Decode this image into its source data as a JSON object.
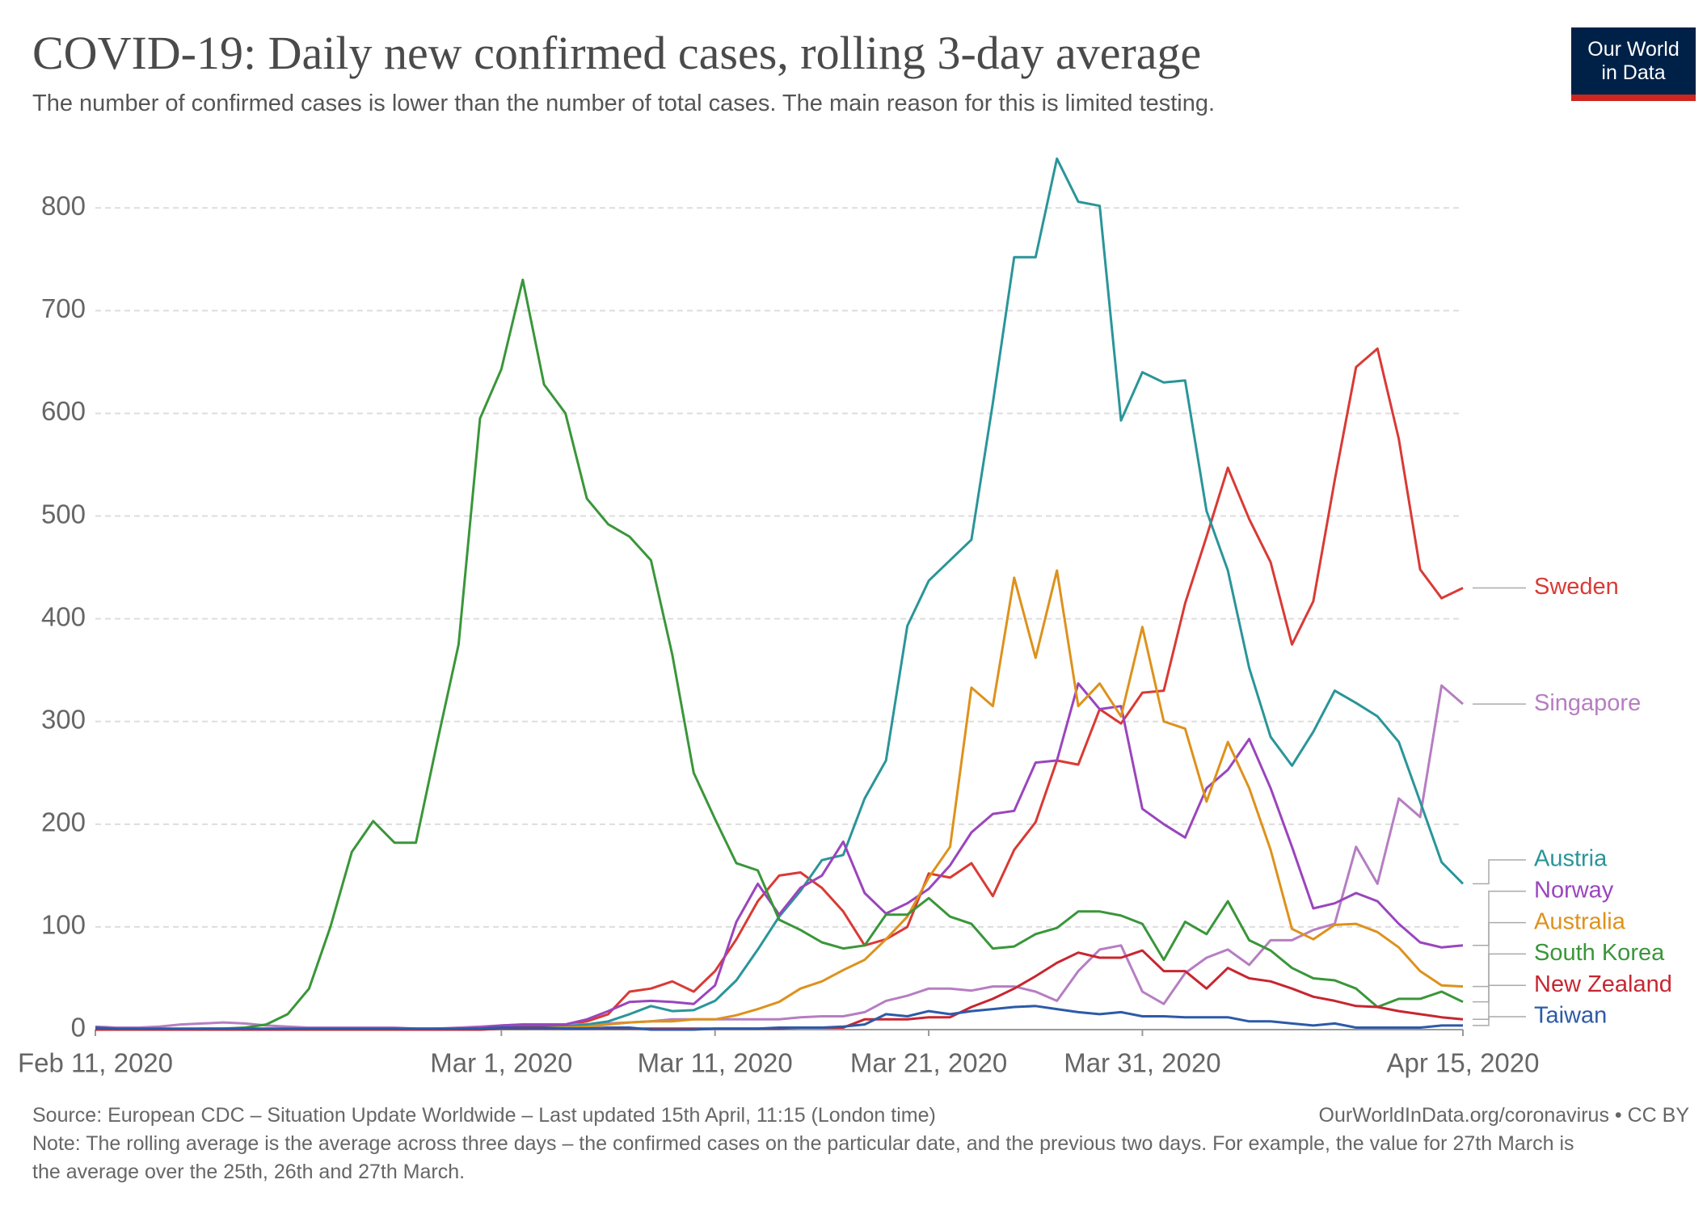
{
  "chart_data": {
    "type": "line",
    "title": "COVID-19: Daily new confirmed cases, rolling 3-day average",
    "subtitle": "The number of confirmed cases is lower than the number of total cases. The main reason for this is limited testing.",
    "logo": [
      "Our World",
      "in Data"
    ],
    "source": "Source: European CDC – Situation Update Worldwide – Last updated 15th April, 11:15 (London time)",
    "source_link": "OurWorldInData.org/coronavirus • CC BY",
    "note": "Note: The rolling average is the average across three days – the confirmed cases on the particular date, and the previous two days. For example, the value for 27th March is the average over the 25th, 26th and 27th March.",
    "x": [
      "2020-02-11",
      "2020-02-12",
      "2020-02-13",
      "2020-02-14",
      "2020-02-15",
      "2020-02-16",
      "2020-02-17",
      "2020-02-18",
      "2020-02-19",
      "2020-02-20",
      "2020-02-21",
      "2020-02-22",
      "2020-02-23",
      "2020-02-24",
      "2020-02-25",
      "2020-02-26",
      "2020-02-27",
      "2020-02-28",
      "2020-02-29",
      "2020-03-01",
      "2020-03-02",
      "2020-03-03",
      "2020-03-04",
      "2020-03-05",
      "2020-03-06",
      "2020-03-07",
      "2020-03-08",
      "2020-03-09",
      "2020-03-10",
      "2020-03-11",
      "2020-03-12",
      "2020-03-13",
      "2020-03-14",
      "2020-03-15",
      "2020-03-16",
      "2020-03-17",
      "2020-03-18",
      "2020-03-19",
      "2020-03-20",
      "2020-03-21",
      "2020-03-22",
      "2020-03-23",
      "2020-03-24",
      "2020-03-25",
      "2020-03-26",
      "2020-03-27",
      "2020-03-28",
      "2020-03-29",
      "2020-03-30",
      "2020-03-31",
      "2020-04-01",
      "2020-04-02",
      "2020-04-03",
      "2020-04-04",
      "2020-04-05",
      "2020-04-06",
      "2020-04-07",
      "2020-04-08",
      "2020-04-09",
      "2020-04-10",
      "2020-04-11",
      "2020-04-12",
      "2020-04-13",
      "2020-04-14",
      "2020-04-15"
    ],
    "xlim": [
      "2020-02-11",
      "2020-04-15"
    ],
    "xticks": [
      {
        "value": "2020-02-11",
        "label": "Feb 11, 2020"
      },
      {
        "value": "2020-03-01",
        "label": "Mar 1, 2020"
      },
      {
        "value": "2020-03-11",
        "label": "Mar 11, 2020"
      },
      {
        "value": "2020-03-21",
        "label": "Mar 21, 2020"
      },
      {
        "value": "2020-03-31",
        "label": "Mar 31, 2020"
      },
      {
        "value": "2020-04-15",
        "label": "Apr 15, 2020"
      }
    ],
    "ylim": [
      0,
      860
    ],
    "yticks": [
      0,
      100,
      200,
      300,
      400,
      500,
      600,
      700,
      800
    ],
    "grid": true,
    "series": [
      {
        "name": "Sweden",
        "color": "#d93a35",
        "values": [
          0,
          0,
          0,
          0,
          0,
          0,
          0,
          0,
          0,
          0,
          0,
          0,
          0,
          0,
          0,
          0,
          1,
          1,
          2,
          3,
          3,
          3,
          5,
          8,
          15,
          37,
          40,
          47,
          37,
          57,
          88,
          125,
          150,
          153,
          138,
          115,
          82,
          88,
          100,
          152,
          148,
          162,
          130,
          175,
          202,
          262,
          258,
          312,
          298,
          328,
          330,
          415,
          480,
          547,
          497,
          455,
          375,
          417,
          535,
          645,
          663,
          575,
          448,
          420,
          430
        ]
      },
      {
        "name": "Singapore",
        "color": "#b67ec2",
        "values": [
          3,
          2,
          2,
          3,
          5,
          6,
          7,
          6,
          4,
          3,
          2,
          2,
          2,
          2,
          2,
          1,
          1,
          2,
          3,
          4,
          5,
          5,
          5,
          5,
          6,
          7,
          8,
          10,
          10,
          10,
          10,
          10,
          10,
          12,
          13,
          13,
          17,
          28,
          33,
          40,
          40,
          38,
          42,
          42,
          37,
          28,
          57,
          78,
          82,
          37,
          25,
          55,
          70,
          78,
          63,
          87,
          87,
          97,
          103,
          178,
          142,
          225,
          207,
          335,
          317
        ]
      },
      {
        "name": "Austria",
        "color": "#2a9599",
        "values": [
          0,
          0,
          0,
          0,
          0,
          0,
          0,
          0,
          0,
          0,
          0,
          0,
          0,
          0,
          0,
          0,
          0,
          0,
          0,
          1,
          1,
          2,
          3,
          5,
          8,
          15,
          23,
          18,
          19,
          28,
          48,
          78,
          110,
          135,
          165,
          170,
          225,
          262,
          393,
          437,
          457,
          477,
          610,
          752,
          752,
          848,
          806,
          802,
          593,
          640,
          630,
          632,
          505,
          447,
          352,
          285,
          257,
          290,
          330,
          318,
          305,
          280,
          222,
          163,
          142
        ]
      },
      {
        "name": "Norway",
        "color": "#9a45bd",
        "values": [
          0,
          0,
          0,
          0,
          0,
          0,
          0,
          0,
          0,
          0,
          0,
          0,
          0,
          0,
          0,
          0,
          0,
          1,
          2,
          4,
          5,
          5,
          5,
          10,
          18,
          27,
          28,
          27,
          25,
          43,
          105,
          142,
          112,
          138,
          150,
          183,
          133,
          113,
          123,
          137,
          160,
          192,
          210,
          213,
          260,
          262,
          337,
          312,
          315,
          215,
          200,
          187,
          235,
          253,
          283,
          235,
          178,
          118,
          123,
          133,
          125,
          103,
          85,
          80,
          82
        ]
      },
      {
        "name": "Australia",
        "color": "#dd921c",
        "values": [
          0,
          0,
          0,
          0,
          0,
          0,
          0,
          0,
          0,
          0,
          0,
          0,
          0,
          0,
          0,
          0,
          0,
          0,
          1,
          1,
          1,
          2,
          2,
          3,
          5,
          7,
          8,
          8,
          10,
          10,
          14,
          20,
          27,
          40,
          47,
          58,
          68,
          88,
          110,
          148,
          178,
          333,
          315,
          440,
          362,
          447,
          315,
          337,
          305,
          392,
          300,
          293,
          222,
          280,
          235,
          175,
          98,
          88,
          102,
          103,
          95,
          80,
          57,
          43,
          42
        ]
      },
      {
        "name": "South Korea",
        "color": "#3a963a",
        "values": [
          0,
          0,
          0,
          0,
          0,
          1,
          1,
          2,
          5,
          15,
          40,
          100,
          173,
          203,
          182,
          182,
          280,
          375,
          595,
          643,
          730,
          628,
          600,
          517,
          492,
          480,
          457,
          365,
          250,
          205,
          162,
          155,
          107,
          97,
          85,
          79,
          82,
          112,
          112,
          128,
          110,
          103,
          79,
          81,
          93,
          99,
          115,
          115,
          111,
          103,
          68,
          105,
          93,
          125,
          87,
          77,
          60,
          50,
          48,
          40,
          22,
          30,
          30,
          37,
          27
        ]
      },
      {
        "name": "New Zealand",
        "color": "#c72631",
        "values": [
          0,
          0,
          0,
          0,
          0,
          0,
          0,
          0,
          0,
          0,
          0,
          0,
          0,
          0,
          0,
          0,
          0,
          0,
          0,
          1,
          1,
          1,
          1,
          1,
          1,
          1,
          1,
          1,
          1,
          1,
          1,
          1,
          1,
          2,
          2,
          2,
          10,
          10,
          10,
          12,
          12,
          22,
          30,
          40,
          52,
          65,
          75,
          70,
          70,
          77,
          57,
          57,
          40,
          60,
          50,
          47,
          40,
          32,
          28,
          23,
          22,
          18,
          15,
          12,
          10
        ]
      },
      {
        "name": "Taiwan",
        "color": "#2d5aa8",
        "values": [
          2,
          1,
          1,
          1,
          1,
          1,
          1,
          1,
          1,
          1,
          1,
          1,
          1,
          1,
          1,
          1,
          1,
          1,
          1,
          2,
          2,
          2,
          1,
          1,
          2,
          2,
          0,
          0,
          0,
          1,
          1,
          1,
          2,
          2,
          2,
          3,
          5,
          15,
          13,
          18,
          15,
          18,
          20,
          22,
          23,
          20,
          17,
          15,
          17,
          13,
          13,
          12,
          12,
          12,
          8,
          8,
          6,
          4,
          6,
          2,
          2,
          2,
          2,
          4,
          4
        ]
      }
    ]
  }
}
